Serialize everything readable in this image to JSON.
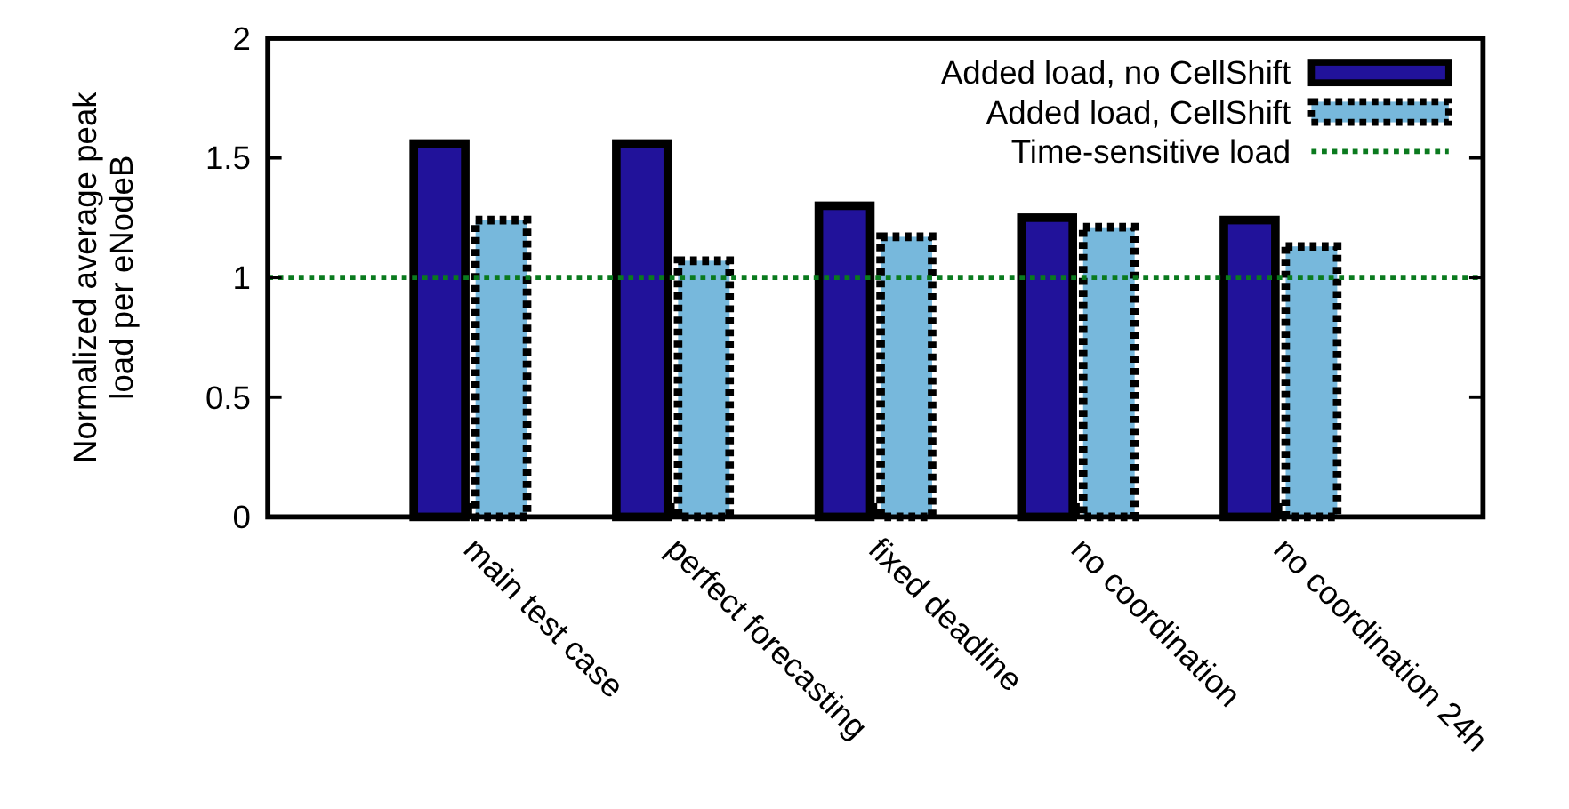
{
  "chart_data": {
    "type": "bar",
    "ylabel": "Normalized average peak\nload per eNodeB",
    "categories": [
      "main test case",
      "perfect forecasting",
      "fixed deadline",
      "no coordination",
      "no coordination 24h"
    ],
    "series": [
      {
        "name": "Added load, no CellShift",
        "color": "#21129a",
        "line_style": "solid",
        "values": [
          1.56,
          1.56,
          1.3,
          1.25,
          1.24
        ]
      },
      {
        "name": "Added load, CellShift",
        "color": "#77b8dc",
        "line_style": "dashed",
        "values": [
          1.24,
          1.07,
          1.17,
          1.21,
          1.13
        ]
      }
    ],
    "ref_lines": [
      {
        "axis": "y",
        "value": 1,
        "label": "Time-sensitive load",
        "color": "#0a7a1e",
        "line_style": "dotted"
      }
    ],
    "ylim": [
      0,
      2
    ],
    "yticks": [
      0,
      0.5,
      1,
      1.5,
      2
    ],
    "grid": false,
    "legend": "top right"
  }
}
